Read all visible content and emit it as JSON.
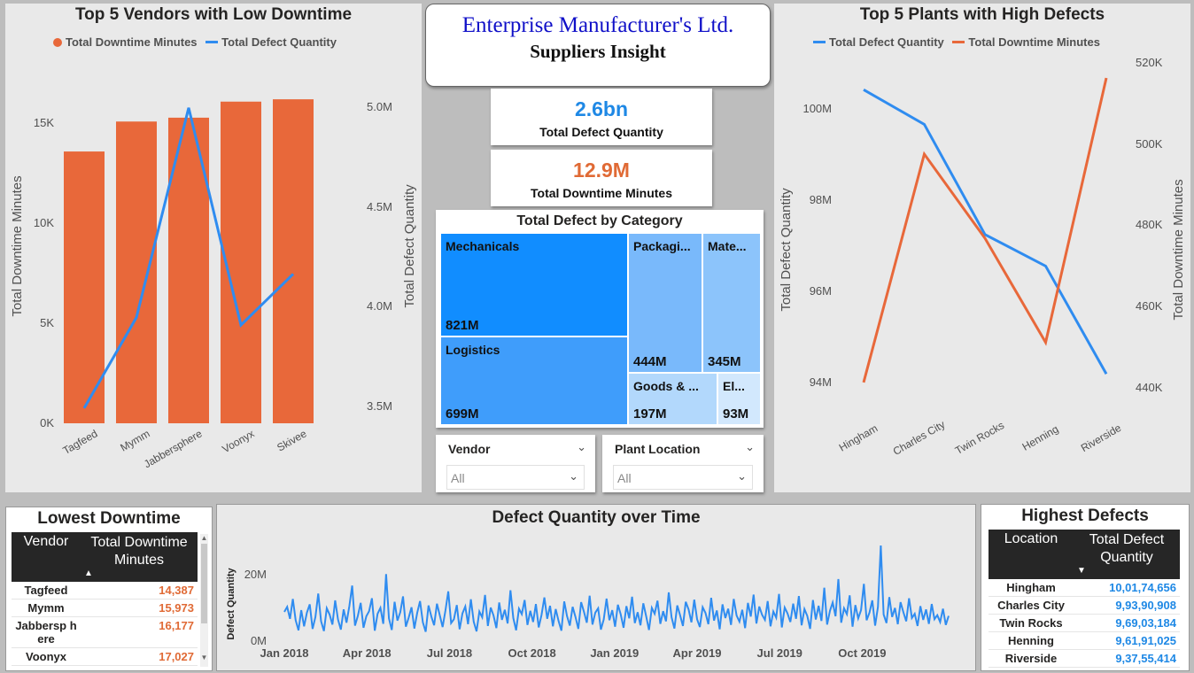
{
  "header": {
    "company": "Enterprise Manufacturer's Ltd.",
    "subtitle": "Suppliers Insight"
  },
  "kpis": [
    {
      "value": "2.6bn",
      "label": "Total Defect Quantity",
      "color": "#1e88e5"
    },
    {
      "value": "12.9M",
      "label": "Total Downtime Minutes",
      "color": "#e06a35"
    }
  ],
  "colors": {
    "orange": "#e8683a",
    "blue": "#2f8cf0",
    "panel": "#e9e9e9",
    "table_header": "#262626"
  },
  "vendors_chart": {
    "title": "Top 5 Vendors with Low Downtime",
    "legend": [
      "Total Downtime Minutes",
      "Total Defect Quantity"
    ],
    "ylabel_left": "Total Downtime Minutes",
    "ylabel_right": "Total Defect Quantity",
    "left_ticks": [
      "0K",
      "5K",
      "10K",
      "15K"
    ],
    "right_ticks": [
      "3.5M",
      "4.0M",
      "4.5M",
      "5.0M"
    ]
  },
  "plants_chart": {
    "title": "Top 5 Plants with High Defects",
    "legend": [
      "Total Defect Quantity",
      "Total Downtime Minutes"
    ],
    "ylabel_left": "Total Defect Quantity",
    "ylabel_right": "Total Downtime Minutes",
    "left_ticks": [
      "94M",
      "96M",
      "98M",
      "100M"
    ],
    "right_ticks": [
      "440K",
      "460K",
      "480K",
      "500K",
      "520K"
    ]
  },
  "treemap": {
    "title": "Total Defect by Category",
    "items": [
      {
        "label": "Mechanicals",
        "value": "821M"
      },
      {
        "label": "Logistics",
        "value": "699M"
      },
      {
        "label": "Packagi...",
        "value": "444M"
      },
      {
        "label": "Mate...",
        "value": "345M"
      },
      {
        "label": "Goods & ...",
        "value": "197M"
      },
      {
        "label": "El...",
        "value": "93M"
      }
    ]
  },
  "slicers": [
    {
      "label": "Vendor",
      "value": "All"
    },
    {
      "label": "Plant Location",
      "value": "All"
    }
  ],
  "lowest_downtime": {
    "title": "Lowest Downtime",
    "columns": [
      "Vendor",
      "Total Downtime Minutes"
    ],
    "rows": [
      {
        "name": "Tagfeed",
        "value": "14,387"
      },
      {
        "name": "Mymm",
        "value": "15,973"
      },
      {
        "name": "Jabbersp here",
        "value": "16,177"
      },
      {
        "name": "Voonyx",
        "value": "17,027"
      }
    ]
  },
  "highest_defects": {
    "title": "Highest Defects",
    "columns": [
      "Location",
      "Total Defect Quantity"
    ],
    "rows": [
      {
        "name": "Hingham",
        "value": "10,01,74,656"
      },
      {
        "name": "Charles City",
        "value": "9,93,90,908"
      },
      {
        "name": "Twin Rocks",
        "value": "9,69,03,184"
      },
      {
        "name": "Henning",
        "value": "9,61,91,025"
      },
      {
        "name": "Riverside",
        "value": "9,37,55,414"
      }
    ]
  },
  "time_chart": {
    "title": "Defect Quantity over Time",
    "ylabel": "Defect Quantity",
    "y_ticks": [
      "0M",
      "20M"
    ],
    "x_ticks": [
      "Jan 2018",
      "Apr 2018",
      "Jul 2018",
      "Oct 2018",
      "Jan 2019",
      "Apr 2019",
      "Jul 2019",
      "Oct 2019"
    ]
  },
  "chart_data": [
    {
      "type": "bar",
      "title": "Top 5 Vendors with Low Downtime",
      "categories": [
        "Tagfeed",
        "Mymm",
        "Jabbersphere",
        "Voonyx",
        "Skivee"
      ],
      "series": [
        {
          "name": "Total Downtime Minutes",
          "values": [
            14387,
            15973,
            16177,
            17027,
            17150
          ],
          "axis": "left"
        },
        {
          "name": "Total Defect Quantity",
          "values": [
            3480000,
            3960000,
            5070000,
            3920000,
            4190000
          ],
          "axis": "right",
          "render": "line"
        }
      ],
      "xlabel": "",
      "ylabel": "Total Downtime Minutes",
      "ylabel_right": "Total Defect Quantity",
      "ylim": [
        0,
        18000
      ],
      "ylim_right": [
        3400000,
        5200000
      ]
    },
    {
      "type": "line",
      "title": "Top 5 Plants with High Defects",
      "categories": [
        "Hingham",
        "Charles City",
        "Twin Rocks",
        "Henning",
        "Riverside"
      ],
      "series": [
        {
          "name": "Total Defect Quantity",
          "values": [
            100174656,
            99390908,
            96903184,
            96191025,
            93755414
          ],
          "axis": "left"
        },
        {
          "name": "Total Downtime Minutes",
          "values": [
            440000,
            497000,
            476000,
            450000,
            516000
          ],
          "axis": "right"
        }
      ],
      "xlabel": "",
      "ylabel": "Total Defect Quantity",
      "ylabel_right": "Total Downtime Minutes",
      "ylim": [
        93200000,
        100800000
      ],
      "ylim_right": [
        436000,
        520000
      ]
    },
    {
      "type": "line",
      "title": "Defect Quantity over Time",
      "x_range": [
        "Jan 2018",
        "Dec 2019"
      ],
      "ylabel": "Defect Quantity",
      "ylim": [
        0,
        28000000
      ],
      "series": [
        {
          "name": "Defect Quantity",
          "values": [
            8.1,
            9.5,
            6.2,
            11.7,
            5.8,
            3.0,
            8.6,
            4.1,
            7.9,
            10.2,
            3.4,
            6.7,
            13.2,
            5.5,
            2.8,
            9.1,
            7.4,
            4.6,
            11.3,
            6.0,
            3.2,
            8.8,
            5.1,
            9.7,
            15.4,
            4.3,
            7.0,
            10.6,
            3.7,
            6.9,
            8.3,
            11.9,
            2.9,
            7.6,
            9.2,
            4.8,
            18.6,
            6.3,
            3.1,
            10.9,
            5.7,
            8.0,
            12.4,
            4.0,
            6.5,
            9.4,
            3.5,
            7.8,
            11.1,
            5.2,
            2.6,
            9.9,
            6.8,
            4.4,
            10.4,
            7.2,
            3.9,
            8.5,
            13.8,
            5.0,
            6.1,
            10.0,
            3.3,
            7.7,
            9.6,
            4.7,
            11.6,
            5.4,
            2.7,
            8.2,
            6.6,
            12.8,
            4.2,
            9.3,
            7.1,
            3.6,
            10.7,
            5.9,
            8.7,
            4.9,
            14.1,
            6.4,
            3.0,
            9.0,
            7.5,
            11.4,
            4.5,
            8.4,
            5.3,
            10.3,
            3.8,
            7.3,
            12.1,
            6.2,
            9.8,
            4.1,
            8.9,
            5.6,
            2.9,
            11.0,
            7.0,
            4.3,
            9.5,
            6.7,
            3.4,
            10.8,
            8.1,
            5.1,
            12.6,
            4.6,
            7.9,
            9.1,
            3.2,
            6.0,
            11.8,
            5.8,
            8.6,
            4.0,
            10.1,
            7.4,
            3.7,
            9.7,
            6.3,
            12.3,
            5.0,
            8.0,
            4.4,
            10.5,
            6.9,
            3.1,
            9.2,
            7.6,
            11.2,
            4.8,
            8.3,
            5.5,
            13.5,
            6.6,
            3.5,
            9.9,
            7.2,
            4.2,
            10.9,
            8.8,
            5.2,
            11.5,
            6.1,
            3.9,
            9.4,
            7.8,
            4.7,
            12.0,
            5.7,
            8.5,
            3.3,
            10.2,
            6.4,
            9.0,
            4.5,
            11.7,
            7.1,
            5.4,
            8.7,
            3.6,
            10.6,
            6.8,
            12.9,
            4.9,
            9.6,
            7.3,
            5.9,
            11.1,
            4.1,
            8.2,
            6.5,
            13.1,
            3.8,
            9.3,
            7.7,
            5.3,
            10.4,
            6.2,
            12.5,
            4.4,
            8.9,
            7.0,
            3.4,
            11.4,
            6.0,
            9.8,
            5.6,
            14.8,
            4.6,
            8.4,
            10.7,
            6.9,
            17.2,
            5.1,
            9.1,
            7.5,
            12.7,
            4.0,
            10.0,
            6.3,
            8.6,
            15.9,
            5.8,
            7.9,
            11.3,
            4.3,
            9.5,
            26.5,
            7.4,
            5.0,
            12.2,
            6.7,
            9.2,
            4.7,
            10.8,
            8.0,
            5.5,
            11.9,
            6.4,
            7.6,
            4.2,
            9.7,
            5.9,
            8.8,
            4.8,
            10.3,
            6.1,
            7.2,
            5.3,
            9.0,
            4.5,
            7.0
          ]
        }
      ]
    }
  ]
}
